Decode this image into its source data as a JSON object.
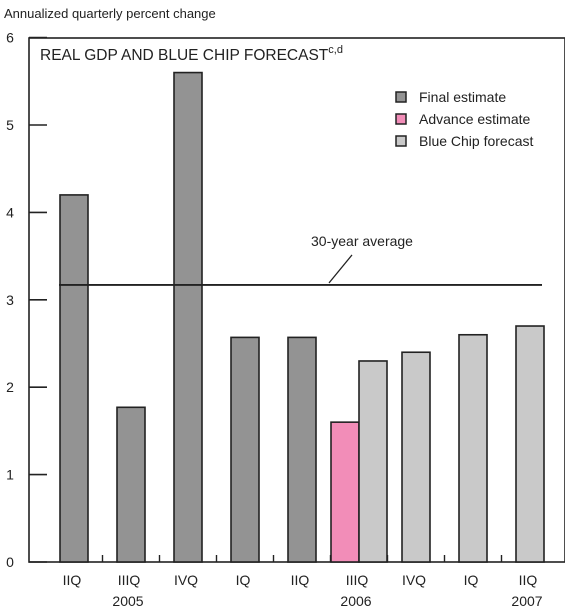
{
  "chart_data": {
    "type": "bar",
    "ylabel": "Annualized quarterly percent change",
    "title": "REAL GDP AND BLUE CHIP FORECAST",
    "title_superscript": "c,d",
    "ylim": [
      0,
      6
    ],
    "yticks": [
      "0",
      "1",
      "2",
      "3",
      "4",
      "5",
      "6"
    ],
    "categories": [
      "IIQ",
      "IIIQ",
      "IVQ",
      "IQ",
      "IIQ",
      "IIIQ",
      "IVQ",
      "IQ",
      "IIQ"
    ],
    "years": [
      {
        "label": "2005",
        "category_index": 1
      },
      {
        "label": "2006",
        "category_index": 5
      },
      {
        "label": "2007",
        "category_index": 8
      }
    ],
    "series": [
      {
        "name": "Final estimate",
        "color": "#939393",
        "values": [
          4.2,
          1.77,
          5.6,
          2.57,
          2.57,
          null,
          null,
          null,
          null
        ]
      },
      {
        "name": "Advance estimate",
        "color": "#f28db8",
        "values": [
          null,
          null,
          null,
          null,
          null,
          1.6,
          null,
          null,
          null
        ]
      },
      {
        "name": "Blue Chip forecast",
        "color": "#c9c9c9",
        "values": [
          null,
          null,
          null,
          null,
          null,
          2.3,
          2.4,
          2.6,
          2.7
        ]
      }
    ],
    "reference_line": {
      "label": "30-year average",
      "value": 3.17
    },
    "legend_position": "top-right",
    "grid": false
  }
}
